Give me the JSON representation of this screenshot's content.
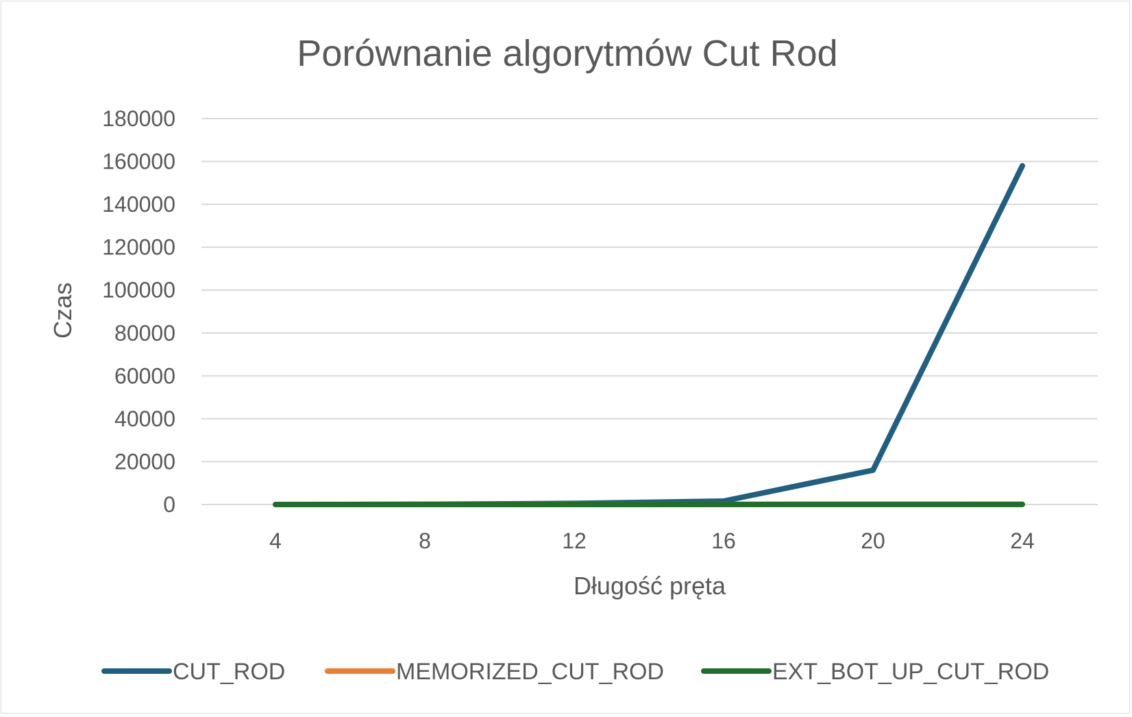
{
  "chart_data": {
    "type": "line",
    "title": "Porównanie algorytmów Cut Rod",
    "xlabel": "Długość pręta",
    "ylabel": "Czas",
    "categories": [
      "4",
      "8",
      "12",
      "16",
      "20",
      "24"
    ],
    "ylim": [
      0,
      180000
    ],
    "yticks": [
      "0",
      "20000",
      "40000",
      "60000",
      "80000",
      "100000",
      "120000",
      "140000",
      "160000",
      "180000"
    ],
    "grid": true,
    "legend_position": "bottom",
    "series": [
      {
        "name": "CUT_ROD",
        "color": "#1f5f82",
        "values": [
          10,
          100,
          500,
          1600,
          16000,
          158000
        ]
      },
      {
        "name": "MEMORIZED_CUT_ROD",
        "color": "#ed7d31",
        "values": [
          5,
          15,
          30,
          50,
          75,
          105
        ]
      },
      {
        "name": "EXT_BOT_UP_CUT_ROD",
        "color": "#1f6f2a",
        "values": [
          3,
          8,
          15,
          25,
          40,
          55
        ]
      }
    ]
  }
}
